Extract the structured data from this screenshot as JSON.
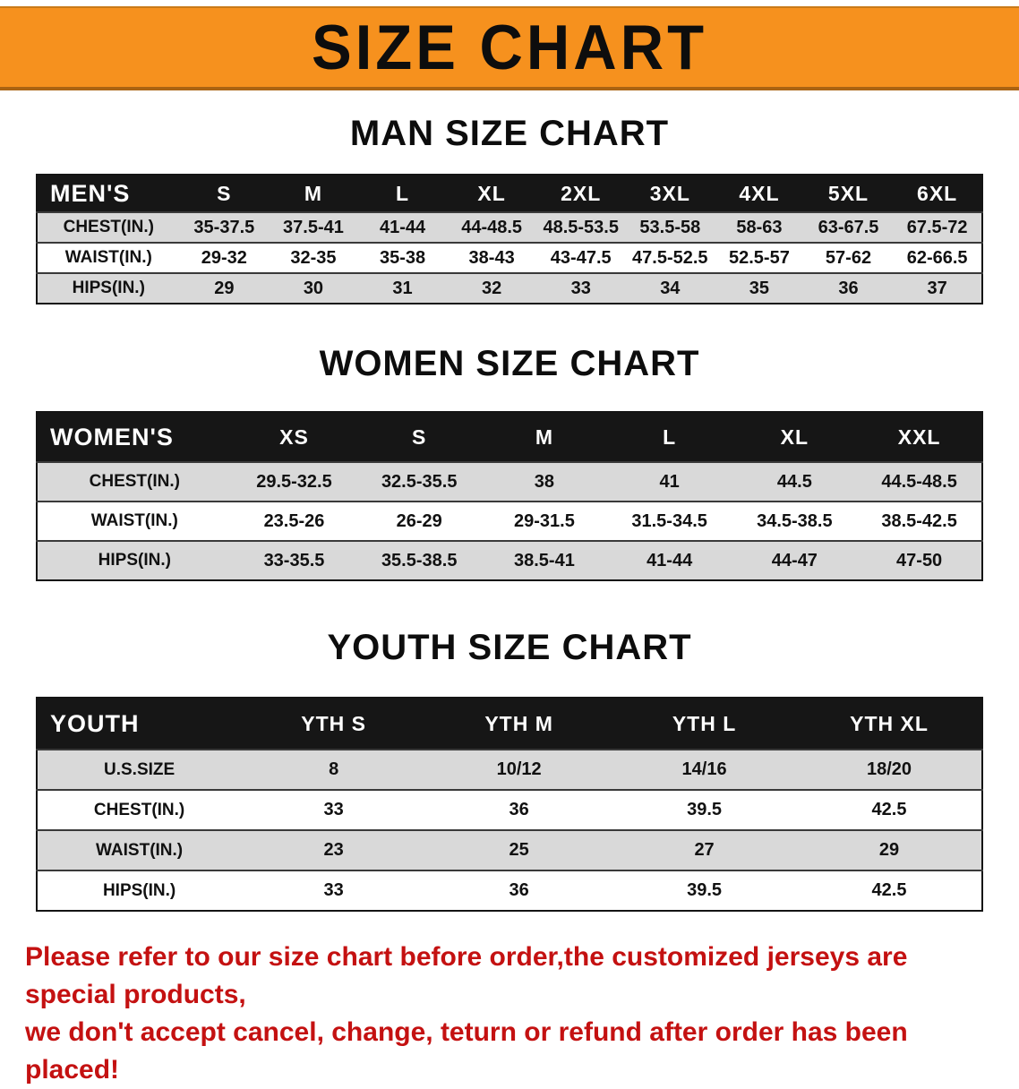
{
  "banner": {
    "title": "SIZE CHART",
    "bg_color": "#f6911e"
  },
  "sections": [
    {
      "heading": "MAN SIZE CHART",
      "table": {
        "header": [
          "MEN'S",
          "S",
          "M",
          "L",
          "XL",
          "2XL",
          "3XL",
          "4XL",
          "5XL",
          "6XL"
        ],
        "rows": [
          {
            "label": "CHEST(IN.)",
            "values": [
              "35-37.5",
              "37.5-41",
              "41-44",
              "44-48.5",
              "48.5-53.5",
              "53.5-58",
              "58-63",
              "63-67.5",
              "67.5-72"
            ]
          },
          {
            "label": "WAIST(IN.)",
            "values": [
              "29-32",
              "32-35",
              "35-38",
              "38-43",
              "43-47.5",
              "47.5-52.5",
              "52.5-57",
              "57-62",
              "62-66.5"
            ]
          },
          {
            "label": "HIPS(IN.)",
            "values": [
              "29",
              "30",
              "31",
              "32",
              "33",
              "34",
              "35",
              "36",
              "37"
            ]
          }
        ]
      }
    },
    {
      "heading": "WOMEN SIZE CHART",
      "table": {
        "header": [
          "WOMEN'S",
          "XS",
          "S",
          "M",
          "L",
          "XL",
          "XXL"
        ],
        "rows": [
          {
            "label": "CHEST(IN.)",
            "values": [
              "29.5-32.5",
              "32.5-35.5",
              "38",
              "41",
              "44.5",
              "44.5-48.5"
            ]
          },
          {
            "label": "WAIST(IN.)",
            "values": [
              "23.5-26",
              "26-29",
              "29-31.5",
              "31.5-34.5",
              "34.5-38.5",
              "38.5-42.5"
            ]
          },
          {
            "label": "HIPS(IN.)",
            "values": [
              "33-35.5",
              "35.5-38.5",
              "38.5-41",
              "41-44",
              "44-47",
              "47-50"
            ]
          }
        ]
      }
    },
    {
      "heading": "YOUTH SIZE CHART",
      "table": {
        "header": [
          "YOUTH",
          "YTH S",
          "YTH M",
          "YTH L",
          "YTH XL"
        ],
        "rows": [
          {
            "label": "U.S.SIZE",
            "values": [
              "8",
              "10/12",
              "14/16",
              "18/20"
            ]
          },
          {
            "label": "CHEST(IN.)",
            "values": [
              "33",
              "36",
              "39.5",
              "42.5"
            ]
          },
          {
            "label": "WAIST(IN.)",
            "values": [
              "23",
              "25",
              "27",
              "29"
            ]
          },
          {
            "label": "HIPS(IN.)",
            "values": [
              "33",
              "36",
              "39.5",
              "42.5"
            ]
          }
        ]
      }
    }
  ],
  "disclaimer": {
    "line1": "Please refer to our size chart before order,the customized jerseys are special products,",
    "line2": "we don't accept cancel, change, teturn or refund after order has been placed!",
    "color": "#c41111"
  }
}
